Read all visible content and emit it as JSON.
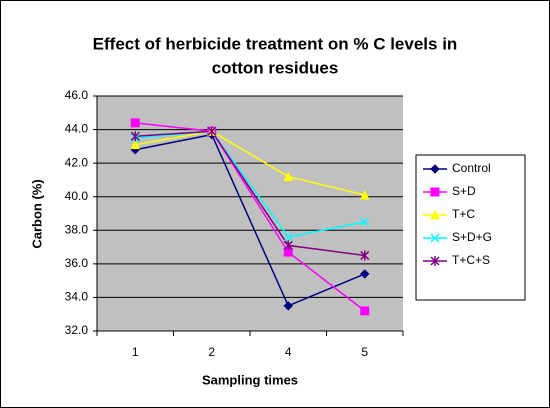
{
  "chart_data": {
    "type": "line",
    "title": [
      "Effect of herbicide treatment on % C levels in",
      "cotton residues"
    ],
    "x_label": "Sampling times",
    "y_label": "Carbon (%)",
    "categories": [
      "1",
      "2",
      "4",
      "5"
    ],
    "series": [
      {
        "name": "Control",
        "color": "#000080",
        "marker": "diamond",
        "values": [
          42.8,
          43.7,
          33.5,
          35.4
        ]
      },
      {
        "name": "S+D",
        "color": "#ff00ff",
        "marker": "square",
        "values": [
          44.4,
          43.9,
          36.7,
          33.2
        ]
      },
      {
        "name": "T+C",
        "color": "#ffff00",
        "marker": "triangle",
        "values": [
          43.1,
          43.9,
          41.2,
          40.1
        ]
      },
      {
        "name": "S+D+G",
        "color": "#00ffff",
        "marker": "x",
        "values": [
          43.5,
          43.9,
          37.6,
          38.5
        ]
      },
      {
        "name": "T+C+S",
        "color": "#800080",
        "marker": "asterisk",
        "values": [
          43.6,
          43.9,
          37.1,
          36.5
        ]
      }
    ],
    "ylim": [
      32,
      46
    ],
    "yticks": [
      {
        "value": 32,
        "label": "32.0"
      },
      {
        "value": 34,
        "label": "34.0"
      },
      {
        "value": 36,
        "label": "36.0"
      },
      {
        "value": 38,
        "label": "38.0"
      },
      {
        "value": 40,
        "label": "40.0"
      },
      {
        "value": 42,
        "label": "42.0"
      },
      {
        "value": 44,
        "label": "44.0"
      },
      {
        "value": 46,
        "label": "46.0"
      }
    ],
    "grid": true,
    "legend": "right",
    "plot_background": "#c0c0c0"
  }
}
